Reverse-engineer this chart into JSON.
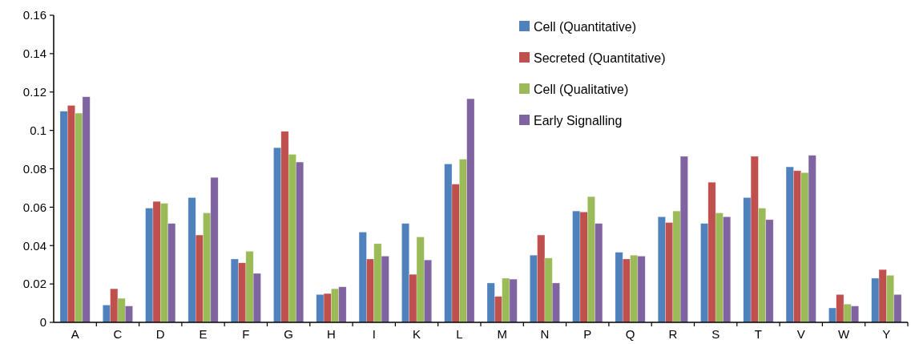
{
  "chart_data": {
    "type": "bar",
    "categories": [
      "A",
      "C",
      "D",
      "E",
      "F",
      "G",
      "H",
      "I",
      "K",
      "L",
      "M",
      "N",
      "P",
      "Q",
      "R",
      "S",
      "T",
      "V",
      "W",
      "Y"
    ],
    "series": [
      {
        "name": "Cell (Quantitative)",
        "color": "#4f81bd",
        "values": [
          0.11,
          0.009,
          0.0595,
          0.065,
          0.033,
          0.091,
          0.0145,
          0.047,
          0.0515,
          0.0825,
          0.0205,
          0.035,
          0.058,
          0.0365,
          0.055,
          0.0515,
          0.065,
          0.081,
          0.0075,
          0.023
        ]
      },
      {
        "name": "Secreted (Quantitative)",
        "color": "#c0504d",
        "values": [
          0.113,
          0.0175,
          0.063,
          0.0455,
          0.031,
          0.0995,
          0.015,
          0.033,
          0.025,
          0.072,
          0.0135,
          0.0455,
          0.0575,
          0.033,
          0.052,
          0.073,
          0.0865,
          0.079,
          0.0145,
          0.0275
        ]
      },
      {
        "name": "Cell (Qualitative)",
        "color": "#9bbb59",
        "values": [
          0.109,
          0.0125,
          0.062,
          0.057,
          0.037,
          0.0875,
          0.0175,
          0.041,
          0.0445,
          0.085,
          0.023,
          0.0335,
          0.0655,
          0.035,
          0.058,
          0.057,
          0.0595,
          0.078,
          0.0095,
          0.0245
        ]
      },
      {
        "name": "Early Signalling",
        "color": "#8064a2",
        "values": [
          0.1175,
          0.0085,
          0.0515,
          0.0755,
          0.0255,
          0.0835,
          0.0185,
          0.0345,
          0.0325,
          0.1165,
          0.0225,
          0.0205,
          0.0515,
          0.0345,
          0.0865,
          0.055,
          0.0535,
          0.087,
          0.0085,
          0.0145
        ]
      }
    ],
    "ylim": [
      0,
      0.16
    ],
    "yticks": [
      0,
      0.02,
      0.04,
      0.06,
      0.08,
      0.1,
      0.12,
      0.14,
      0.16
    ],
    "grid": false,
    "legend": "top right"
  }
}
